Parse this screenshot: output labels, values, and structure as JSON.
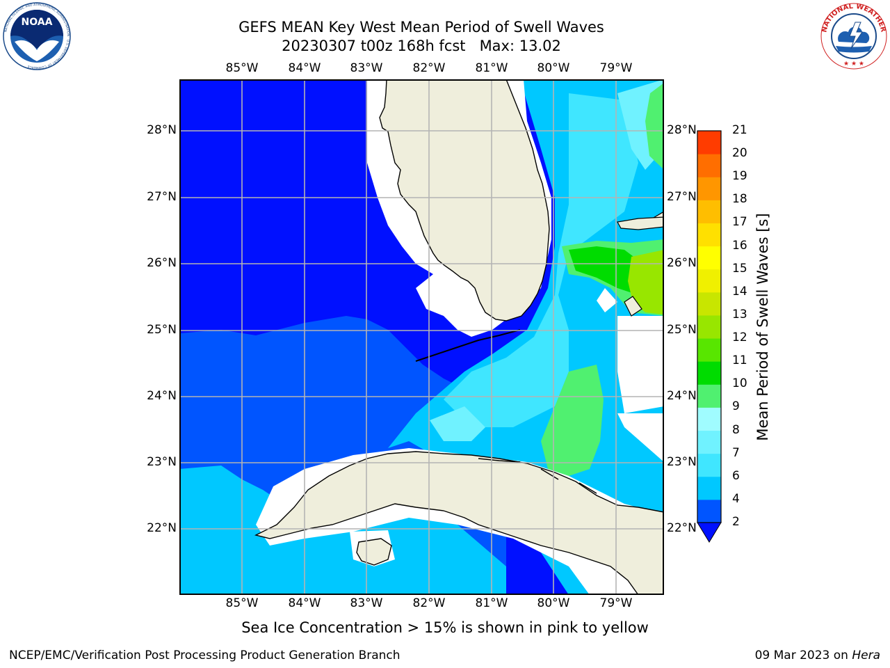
{
  "header": {
    "title_line1": "GEFS MEAN Key West Mean Period of Swell Waves",
    "title_line2": "20230307 t00z 168h fcst   Max: 13.02"
  },
  "logos": {
    "left": {
      "icon": "noaa-logo",
      "text": "NOAA",
      "ring_text": "NATIONAL OCEANIC AND ATMOSPHERIC ADMINISTRATION · U.S. DEPARTMENT OF COMMERCE"
    },
    "right": {
      "icon": "nws-logo",
      "ring_text": "NATIONAL WEATHER SERVICE"
    }
  },
  "map": {
    "lon_ticks": [
      "85°W",
      "84°W",
      "83°W",
      "82°W",
      "81°W",
      "80°W",
      "79°W"
    ],
    "lat_ticks": [
      "28°N",
      "27°N",
      "26°N",
      "25°N",
      "24°N",
      "23°N",
      "22°N"
    ],
    "lon_range": [
      -86,
      -78.25
    ],
    "lat_range": [
      21.05,
      28.8
    ],
    "grid": true,
    "colors": {
      "land": "#efeedc",
      "coast": "#000000",
      "grid": "#b4b4b4"
    }
  },
  "colorbar": {
    "label": "Mean Period of Swell Waves [s]",
    "ticks": [
      "2",
      "4",
      "6",
      "7",
      "8",
      "9",
      "10",
      "11",
      "12",
      "13",
      "14",
      "15",
      "16",
      "17",
      "18",
      "19",
      "20",
      "21"
    ],
    "colors": [
      "#0055ff",
      "#00c8ff",
      "#40e6ff",
      "#70f2ff",
      "#a0fcff",
      "#50f070",
      "#00dc00",
      "#58e600",
      "#98e600",
      "#c8e600",
      "#f0f000",
      "#ffff00",
      "#ffe000",
      "#ffbe00",
      "#ff9600",
      "#ff6e00",
      "#ff3c00",
      "#ff0000"
    ],
    "extend_color": "#0010ff"
  },
  "footer": {
    "note": "Sea Ice Concentration > 15% is shown in pink to yellow",
    "credit": "NCEP/EMC/Verification Post Processing Product Generation Branch",
    "date": "09 Mar 2023 on ",
    "host": "Hera"
  }
}
